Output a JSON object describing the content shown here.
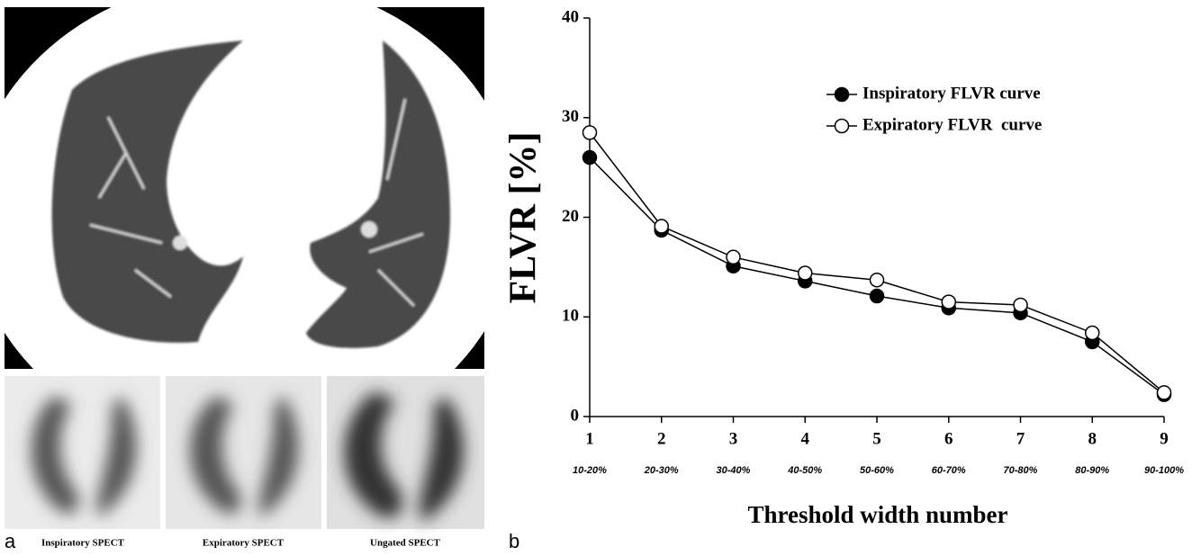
{
  "figure": {
    "panel_a_label": "a",
    "panel_b_label": "b",
    "spect_captions": [
      "Inspiratory SPECT",
      "Expiratory SPECT",
      "Ungated SPECT"
    ]
  },
  "chart_data": {
    "type": "line",
    "ylabel": "FLVR [%]",
    "xlabel": "Threshold width number",
    "x": [
      1,
      2,
      3,
      4,
      5,
      6,
      7,
      8,
      9
    ],
    "x_sublabels": [
      "10-20%",
      "20-30%",
      "30-40%",
      "40-50%",
      "50-60%",
      "60-70%",
      "70-80%",
      "80-90%",
      "90-100%"
    ],
    "xlim": [
      1,
      9
    ],
    "xticks": [
      1,
      2,
      3,
      4,
      5,
      6,
      7,
      8,
      9
    ],
    "ylim": [
      0,
      40
    ],
    "yticks": [
      0,
      10,
      20,
      30,
      40
    ],
    "grid": false,
    "legend": "upper right",
    "series": [
      {
        "name": "Inspiratory FLVR curve",
        "color": "#000000",
        "marker": "filled",
        "values": [
          26,
          18.7,
          15.1,
          13.6,
          12.1,
          10.9,
          10.4,
          7.5,
          2.2
        ]
      },
      {
        "name": "Expiratory FLVR  curve",
        "color": "#000000",
        "marker": "open",
        "values": [
          28.5,
          19.1,
          16.0,
          14.4,
          13.7,
          11.5,
          11.2,
          8.4,
          2.4
        ]
      }
    ]
  }
}
